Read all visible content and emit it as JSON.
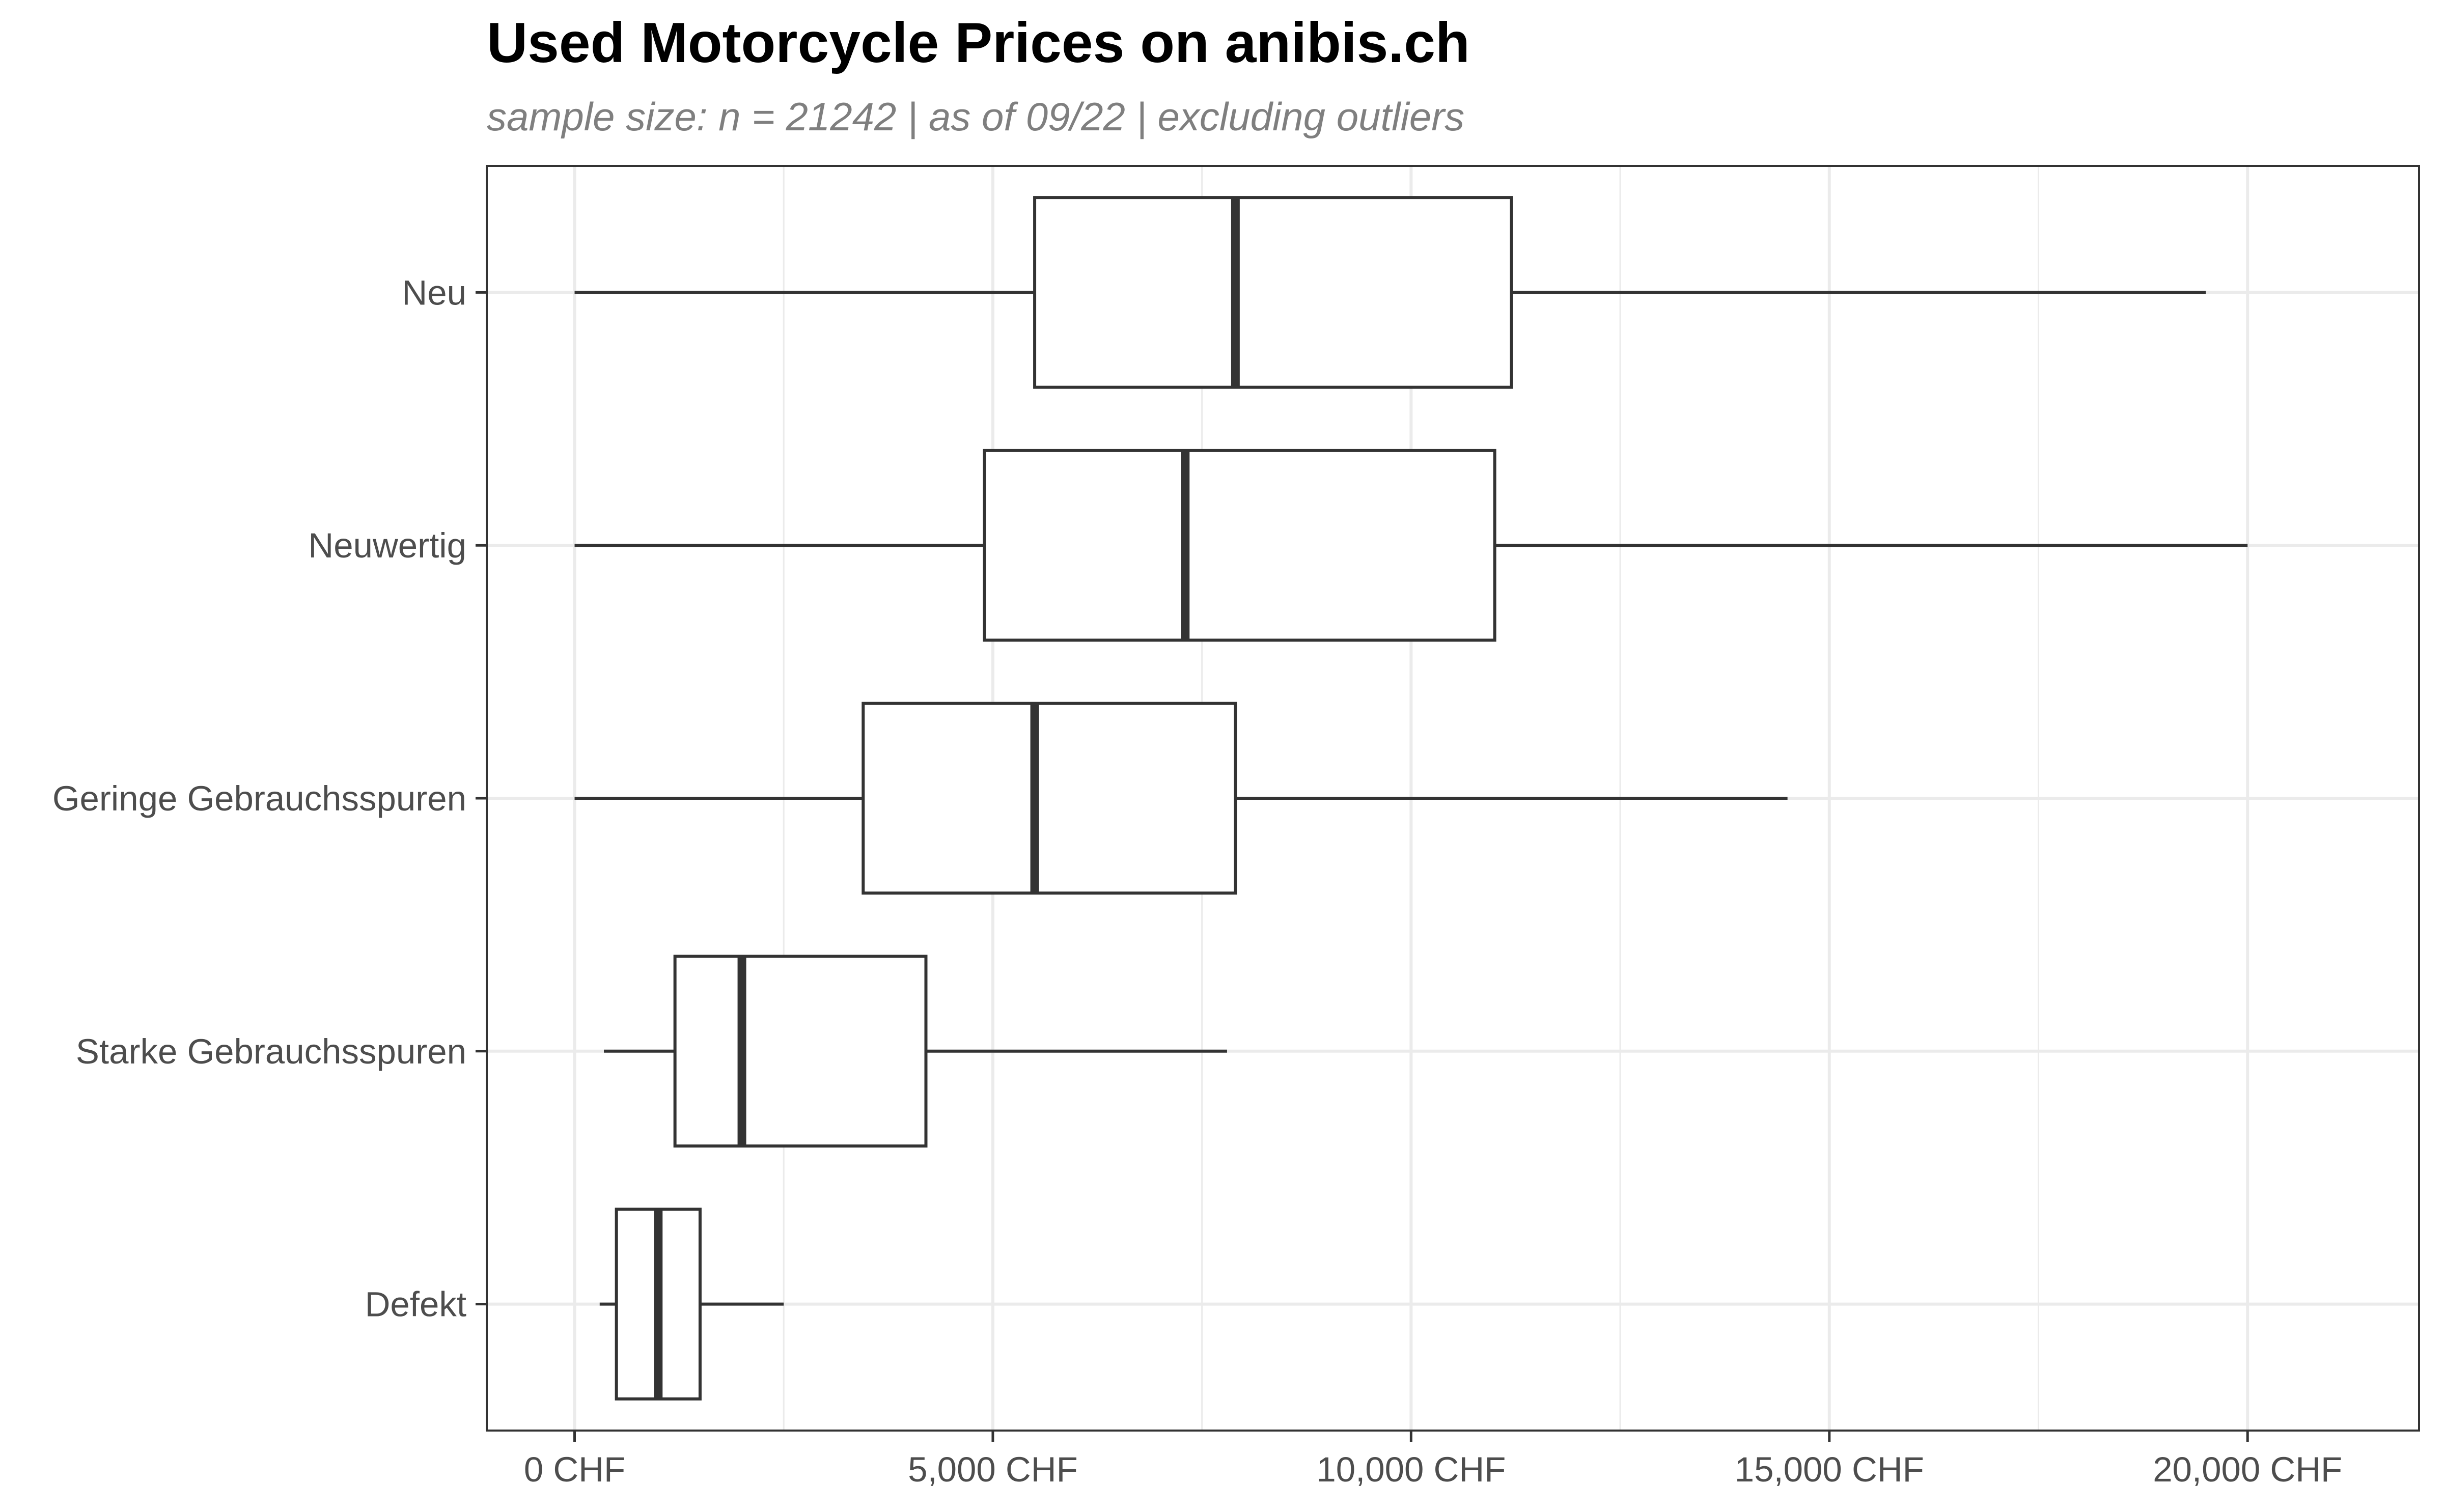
{
  "chart_data": {
    "type": "boxplot",
    "title": "Used Motorcycle Prices on anibis.ch",
    "subtitle": "sample size: n = 21242 | as of 09/22 | excluding outliers",
    "xlabel": "",
    "ylabel": "",
    "orientation": "horizontal",
    "x_ticks": [
      0,
      5000,
      10000,
      15000,
      20000
    ],
    "x_tick_labels": [
      "0 CHF",
      "5,000 CHF",
      "10,000 CHF",
      "15,000 CHF",
      "20,000 CHF"
    ],
    "xlim": [
      -1050,
      22050
    ],
    "grid": true,
    "categories": [
      "Neu",
      "Neuwertig",
      "Geringe Gebrauchsspuren",
      "Starke Gebrauchsspuren",
      "Defekt"
    ],
    "series": [
      {
        "category": "Neu",
        "whisker_low": 0,
        "q1": 5500,
        "median": 7900,
        "q3": 11200,
        "whisker_high": 19500
      },
      {
        "category": "Neuwertig",
        "whisker_low": 0,
        "q1": 4900,
        "median": 7300,
        "q3": 11000,
        "whisker_high": 20000
      },
      {
        "category": "Geringe Gebrauchsspuren",
        "whisker_low": 0,
        "q1": 3450,
        "median": 5500,
        "q3": 7900,
        "whisker_high": 14500
      },
      {
        "category": "Starke Gebrauchsspuren",
        "whisker_low": 350,
        "q1": 1200,
        "median": 2000,
        "q3": 4200,
        "whisker_high": 7800
      },
      {
        "category": "Defekt",
        "whisker_low": 300,
        "q1": 500,
        "median": 1000,
        "q3": 1500,
        "whisker_high": 2500
      }
    ],
    "colors": {
      "box_stroke": "#333333",
      "box_fill": "#ffffff",
      "grid_major": "#ebebeb",
      "panel_border": "#333333",
      "tick_text": "#4d4d4d",
      "title": "#000000",
      "subtitle": "#7f7f7f"
    }
  }
}
